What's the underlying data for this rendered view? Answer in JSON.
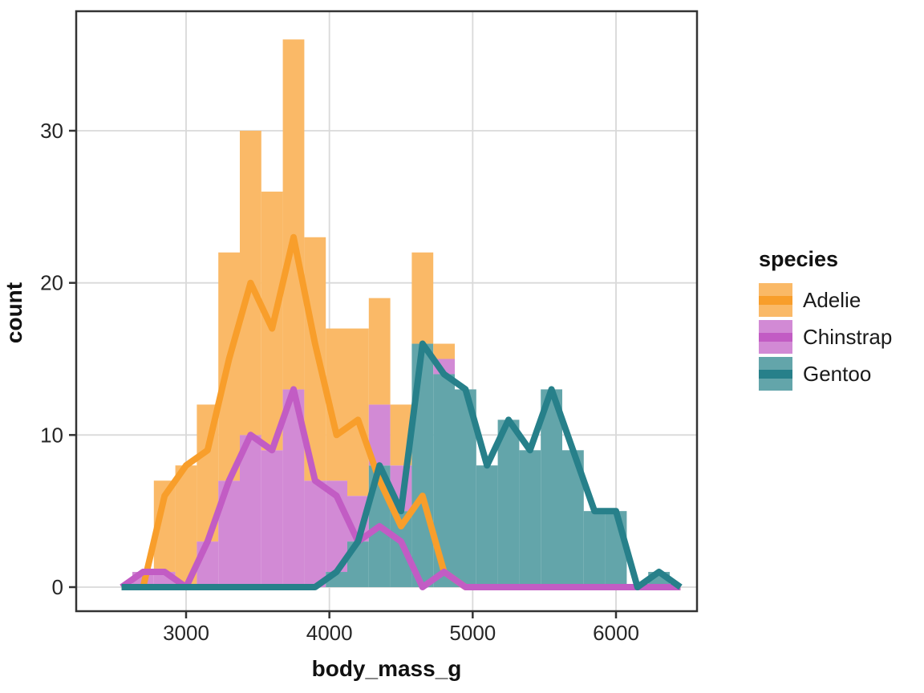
{
  "figure": {
    "background": "#FFFFFF"
  },
  "panel": {
    "border_color": "#333333",
    "grid_color": "#D9D9D9",
    "tick_color": "#333333",
    "tick_label_color": "#262626"
  },
  "chart_data": {
    "type": "histogram+freqpoly",
    "stacked_histogram": true,
    "bin_width": 150,
    "bin_centers": [
      2550,
      2700,
      2850,
      3000,
      3150,
      3300,
      3450,
      3600,
      3750,
      3900,
      4050,
      4200,
      4350,
      4500,
      4650,
      4800,
      4950,
      5100,
      5250,
      5400,
      5550,
      5700,
      5850,
      6000,
      6150,
      6300,
      6450
    ],
    "series": [
      {
        "name": "Adelie",
        "line_color": "#F89E2B",
        "fill_color": "#FAB967",
        "values": [
          0,
          0,
          6,
          8,
          9,
          15,
          20,
          17,
          23,
          16,
          10,
          11,
          7,
          4,
          6,
          1,
          0,
          0,
          0,
          0,
          0,
          0,
          0,
          0,
          0,
          0,
          0
        ]
      },
      {
        "name": "Chinstrap",
        "line_color": "#C25CC4",
        "fill_color": "#D28AD5",
        "values": [
          0,
          1,
          1,
          0,
          3,
          7,
          10,
          9,
          13,
          7,
          6,
          3,
          4,
          3,
          0,
          1,
          0,
          0,
          0,
          0,
          0,
          0,
          0,
          0,
          0,
          0,
          0
        ]
      },
      {
        "name": "Gentoo",
        "line_color": "#27808A",
        "fill_color": "#63A5AA",
        "values": [
          0,
          0,
          0,
          0,
          0,
          0,
          0,
          0,
          0,
          0,
          1,
          3,
          8,
          5,
          16,
          14,
          13,
          8,
          11,
          9,
          13,
          9,
          5,
          5,
          0,
          1,
          0
        ]
      }
    ],
    "stack_order_bottom_to_top": [
      "Gentoo",
      "Chinstrap",
      "Adelie"
    ],
    "line_draw_order": [
      "Adelie",
      "Chinstrap",
      "Gentoo"
    ],
    "x_ticks": [
      3000,
      4000,
      5000,
      6000
    ],
    "y_ticks": [
      0,
      10,
      20,
      30
    ],
    "xlabel": "body_mass_g",
    "ylabel": "count",
    "legend_title": "species",
    "x_range": [
      2550,
      6450
    ],
    "ylim": [
      0,
      37
    ],
    "grid": "major-only",
    "legend_position": "right"
  }
}
